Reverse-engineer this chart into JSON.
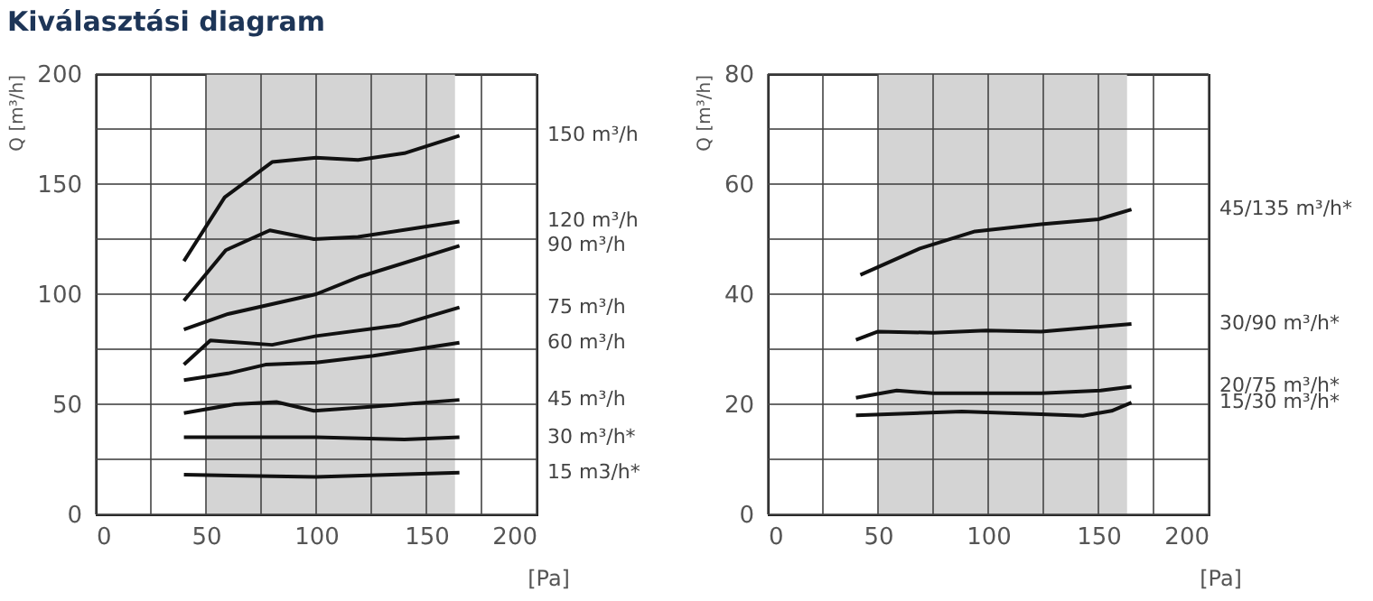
{
  "chart_data": [
    {
      "type": "line",
      "title": "Kiválasztási diagram",
      "xlabel": "[Pa]",
      "ylabel": "Q [m³/h]",
      "xlim": [
        0,
        200
      ],
      "xticks": [
        0,
        {
          "value": 25,
          "label": null
        },
        50,
        {
          "value": 75,
          "label": null
        },
        100,
        {
          "value": 125,
          "label": null
        },
        150,
        {
          "value": 175,
          "label": null
        },
        200
      ],
      "ylim": [
        0,
        200
      ],
      "yticks": [
        0,
        {
          "value": 25,
          "label": null
        },
        50,
        {
          "value": 75,
          "label": null
        },
        100,
        {
          "value": 125,
          "label": null
        },
        150,
        {
          "value": 175,
          "label": null
        },
        200
      ],
      "grid": true,
      "legend": false,
      "line_style": "solid",
      "bands": [
        {
          "axis": "x",
          "from": 50,
          "to": 163,
          "color": "#d4d4d4"
        }
      ],
      "series": [
        {
          "name": "150 m³/h",
          "color": "#111111",
          "x": [
            40,
            58.5,
            80,
            100,
            119,
            140,
            165
          ],
          "values": [
            115,
            144,
            160,
            162,
            161,
            164,
            172
          ]
        },
        {
          "name": "120 m³/h",
          "color": "#111111",
          "x": [
            40,
            59,
            79,
            99,
            119,
            165
          ],
          "values": [
            97,
            120,
            129,
            125,
            126,
            133
          ]
        },
        {
          "name": "90 m³/h",
          "color": "#111111",
          "x": [
            40,
            60,
            100,
            120,
            165
          ],
          "values": [
            84,
            91,
            100,
            108,
            122
          ]
        },
        {
          "name": "75 m³/h",
          "color": "#111111",
          "x": [
            40,
            52,
            80,
            100,
            138,
            165
          ],
          "values": [
            68,
            79,
            77,
            81,
            86,
            94
          ]
        },
        {
          "name": "60 m³/h",
          "color": "#111111",
          "x": [
            40,
            60,
            77,
            100,
            126,
            165
          ],
          "values": [
            61,
            64,
            68,
            69,
            72,
            78
          ]
        },
        {
          "name": "45 m³/h",
          "color": "#111111",
          "x": [
            40,
            63,
            82,
            99,
            126,
            165
          ],
          "values": [
            46,
            50,
            51,
            47,
            49,
            52
          ]
        },
        {
          "name": "30 m³/h*",
          "color": "#111111",
          "x": [
            40,
            100,
            140,
            165
          ],
          "values": [
            35,
            35,
            34,
            35
          ]
        },
        {
          "name": "15 m3/h*",
          "color": "#111111",
          "x": [
            40,
            100,
            165
          ],
          "values": [
            18,
            17,
            19
          ]
        }
      ]
    },
    {
      "type": "line",
      "xlabel": "[Pa]",
      "ylabel": "Q [m³/h]",
      "xlim": [
        0,
        200
      ],
      "xticks": [
        0,
        {
          "value": 25,
          "label": null
        },
        50,
        {
          "value": 75,
          "label": null
        },
        100,
        {
          "value": 125,
          "label": null
        },
        150,
        {
          "value": 175,
          "label": null
        },
        200
      ],
      "ylim": [
        0,
        80
      ],
      "yticks": [
        0,
        {
          "value": 10,
          "label": null
        },
        20,
        {
          "value": 30,
          "label": null
        },
        40,
        {
          "value": 50,
          "label": null
        },
        60,
        {
          "value": 70,
          "label": null
        },
        80
      ],
      "grid": true,
      "legend": false,
      "line_style": "solid",
      "bands": [
        {
          "axis": "x",
          "from": 50,
          "to": 163,
          "color": "#d4d4d4"
        }
      ],
      "series": [
        {
          "name": "45/135 m³/h*",
          "color": "#111111",
          "x": [
            42,
            69,
            94,
            124,
            150,
            165
          ],
          "values": [
            43.5,
            48.3,
            51.4,
            52.7,
            53.6,
            55.4
          ]
        },
        {
          "name": "30/90 m³/h*",
          "color": "#111111",
          "x": [
            40,
            50,
            75,
            99,
            124,
            165
          ],
          "values": [
            31.7,
            33.2,
            33,
            33.4,
            33.2,
            34.6
          ]
        },
        {
          "name": "20/75 m³/h*",
          "color": "#111111",
          "x": [
            40,
            58.5,
            75,
            124,
            151,
            165
          ],
          "values": [
            21.2,
            22.5,
            22,
            22,
            22.5,
            23.2
          ]
        },
        {
          "name": "15/30 m³/h*",
          "color": "#111111",
          "x": [
            40,
            88,
            124,
            143,
            156,
            165
          ],
          "values": [
            18,
            18.7,
            18.2,
            17.9,
            18.8,
            20.3
          ]
        }
      ]
    }
  ]
}
